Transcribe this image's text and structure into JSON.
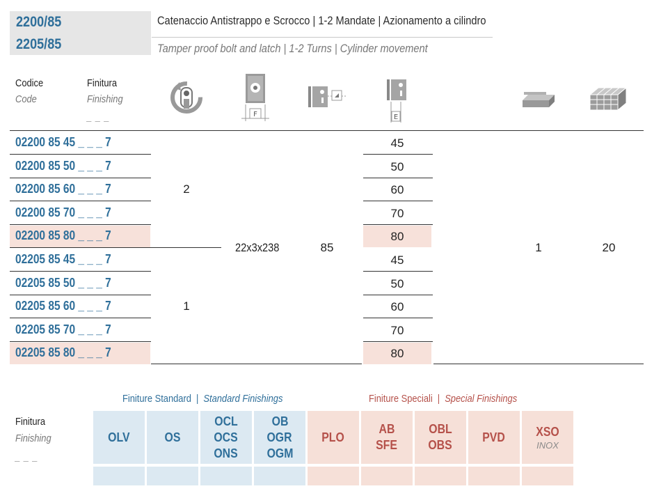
{
  "header": {
    "code_1": "2200/85",
    "code_2": "2205/85",
    "title_it": "Catenaccio Antistrappo e Scrocco | 1-2 Mandate | Azionamento a cilindro",
    "title_en": "Tamper proof bolt and latch | 1-2 Turns | Cylinder movement"
  },
  "columns": {
    "code_it": "Codice",
    "code_en": "Code",
    "finish_it": "Finitura",
    "finish_en": "Finishing",
    "finish_blank": "_ _ _",
    "icon_f_label": "F",
    "icon_e_label": "E",
    "icons": [
      "turns-icon",
      "faceplate-icon",
      "backset-icon",
      "centre-distance-icon",
      "box-icon",
      "carton-icon"
    ]
  },
  "rows": [
    {
      "code": "02200 85 45 _ _ _ 7",
      "e": "45",
      "highlight": false
    },
    {
      "code": "02200 85 50 _ _ _ 7",
      "e": "50",
      "highlight": false
    },
    {
      "code": "02200 85 60 _ _ _ 7",
      "e": "60",
      "highlight": false
    },
    {
      "code": "02200 85 70 _ _ _ 7",
      "e": "70",
      "highlight": false
    },
    {
      "code": "02200 85 80 _ _ _ 7",
      "e": "80",
      "highlight": true
    },
    {
      "code": "02205 85 45 _ _ _ 7",
      "e": "45",
      "highlight": false
    },
    {
      "code": "02205 85 50 _ _ _ 7",
      "e": "50",
      "highlight": false
    },
    {
      "code": "02205 85 60 _ _ _ 7",
      "e": "60",
      "highlight": false
    },
    {
      "code": "02205 85 70 _ _ _ 7",
      "e": "70",
      "highlight": false
    },
    {
      "code": "02205 85 80 _ _ _ 7",
      "e": "80",
      "highlight": true
    }
  ],
  "shared": {
    "turns_group1": "2",
    "turns_group2": "1",
    "faceplate": "22x3x238",
    "backset": "85",
    "box_qty": "1",
    "carton_qty": "20"
  },
  "finishings": {
    "label_it": "Finitura",
    "label_en": "Finishing",
    "label_blank": "_ _ _",
    "standard_it": "Finiture Standard",
    "standard_sep": "|",
    "standard_en": "Standard Finishings",
    "special_it": "Finiture Speciali",
    "special_sep": "|",
    "special_en": "Special Finishings",
    "standard": [
      {
        "l1": "OLV"
      },
      {
        "l1": "OS"
      },
      {
        "l1": "OCL",
        "l2": "OCS",
        "l3": "ONS"
      },
      {
        "l1": "OB",
        "l2": "OGR",
        "l3": "OGM"
      }
    ],
    "special": [
      {
        "l1": "PLO"
      },
      {
        "l1": "AB",
        "l2": "SFE"
      },
      {
        "l1": "OBL",
        "l2": "OBS"
      },
      {
        "l1": "PVD"
      },
      {
        "l1": "XSO",
        "sub": "INOX"
      }
    ]
  },
  "colors": {
    "code_blue": "#2f6f9a",
    "special_red": "#b5514a",
    "highlight_pink": "#f7e1da",
    "std_cell": "#dce9f2"
  }
}
